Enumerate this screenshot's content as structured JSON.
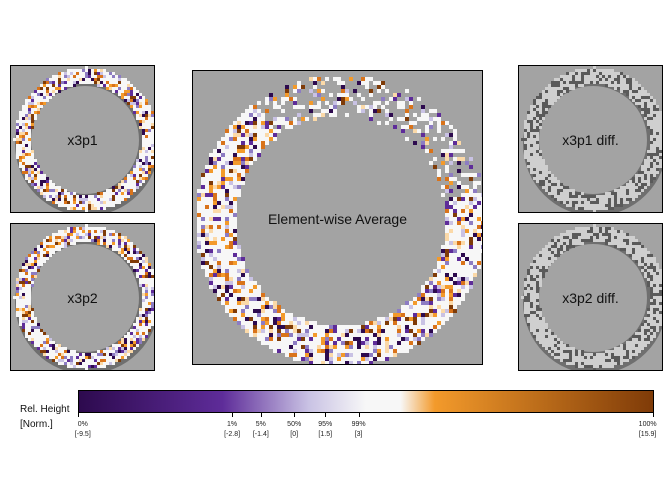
{
  "chart_data": {
    "type": "heatmap",
    "panels": [
      {
        "id": "x3p1",
        "label": "x3p1"
      },
      {
        "id": "x3p2",
        "label": "x3p2"
      },
      {
        "id": "avg",
        "label": "Element-wise Average"
      },
      {
        "id": "d1",
        "label": "x3p1 diff."
      },
      {
        "id": "d2",
        "label": "x3p2 diff."
      }
    ],
    "legend": {
      "title_line1": "Rel. Height",
      "title_line2": "[Norm.]",
      "ticks": [
        {
          "pct": "0%",
          "value": "[-9.5]",
          "v": -9.5
        },
        {
          "pct": "1%",
          "value": "[-2.8]",
          "v": -2.8
        },
        {
          "pct": "5%",
          "value": "[-1.4]",
          "v": -1.4
        },
        {
          "pct": "50%",
          "value": "[0]",
          "v": 0
        },
        {
          "pct": "95%",
          "value": "[1.5]",
          "v": 1.5
        },
        {
          "pct": "99%",
          "value": "[3]",
          "v": 3
        },
        {
          "pct": "100%",
          "value": "[15.9]",
          "v": 15.9
        }
      ]
    },
    "colors": {
      "background": "#a3a3a3",
      "low": "#2d0a4e",
      "mid_low": "#5e2c99",
      "mid": "#f7f7f7",
      "mid_high": "#f39a2b",
      "high": "#7f3b08",
      "diff_fill": "#cfcfcf",
      "diff_mark": "#5a5a5a"
    }
  }
}
